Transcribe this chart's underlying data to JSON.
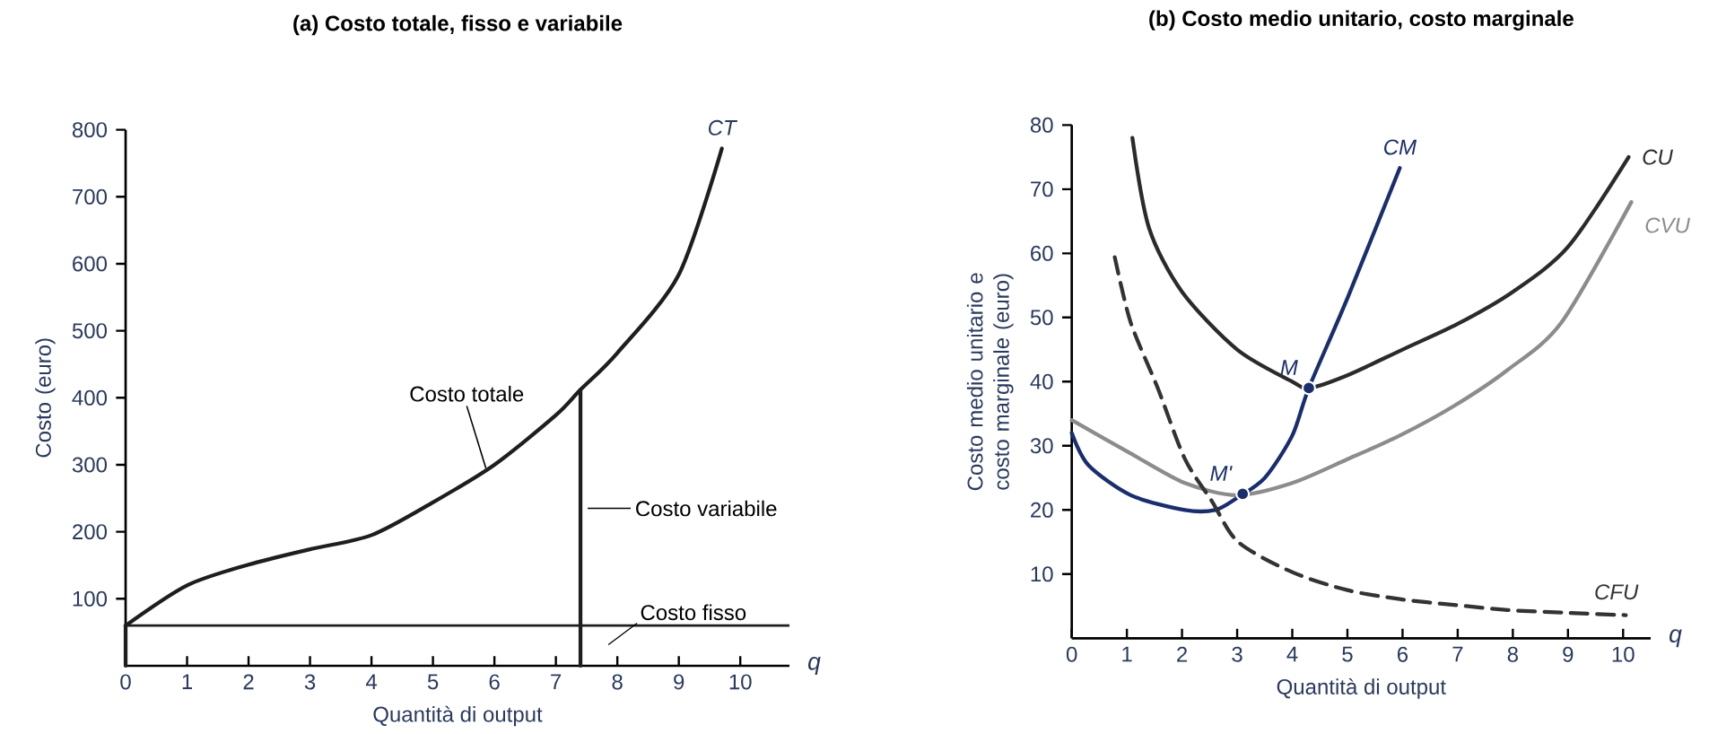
{
  "chart_data": [
    {
      "type": "line",
      "title": "(a) Costo totale, fisso e variabile",
      "xlabel": "Quantità di output",
      "ylabel": "Costo (euro)",
      "xlim": [
        0,
        10.8
      ],
      "ylim": [
        0,
        800
      ],
      "xticks": [
        0,
        1,
        2,
        3,
        4,
        5,
        6,
        7,
        8,
        9,
        10
      ],
      "yticks": [
        100,
        200,
        300,
        400,
        500,
        600,
        700,
        800
      ],
      "series": [
        {
          "name": "CT",
          "color": "#1e1e1e",
          "x": [
            0,
            1,
            2,
            3,
            4,
            5,
            6,
            7,
            7.4,
            8,
            9,
            9.7
          ],
          "values": [
            60,
            120,
            151,
            174,
            195,
            244,
            300,
            374,
            412,
            467,
            584,
            772
          ]
        },
        {
          "color": "#1e1e1e",
          "x": [
            7.4,
            7.4
          ],
          "values": [
            60,
            412
          ]
        },
        {
          "color": "#1e1e1e",
          "x": [
            0,
            0
          ],
          "values": [
            0,
            60
          ]
        },
        {
          "color": "#1e1e1e",
          "x": [
            7.4,
            7.4
          ],
          "values": [
            0,
            60
          ]
        }
      ],
      "ref_lines": [
        {
          "axis": "y",
          "value": 60,
          "label": "Costo fisso",
          "color": "#1e1e1e"
        }
      ],
      "annotations": [
        {
          "text": "Costo totale",
          "x": 5.9,
          "y": 295
        },
        {
          "text": "Costo variabile",
          "x": 7.4,
          "y": 235
        },
        "q"
      ]
    },
    {
      "type": "line",
      "title": "(b) Costo medio unitario, costo marginale",
      "xlabel": "Quantità di output",
      "ylabel": "Costo medio unitario e costo marginale (euro)",
      "xlim": [
        0,
        10.5
      ],
      "ylim": [
        0,
        80
      ],
      "xticks": [
        0,
        1,
        2,
        3,
        4,
        5,
        6,
        7,
        8,
        9,
        10
      ],
      "yticks": [
        10,
        20,
        30,
        40,
        50,
        60,
        70,
        80
      ],
      "series": [
        {
          "name": "CU",
          "color": "#2b2b2b",
          "x": [
            1.1,
            1.4,
            2,
            3,
            4,
            4.3,
            5,
            6,
            7,
            8,
            9,
            10.1
          ],
          "values": [
            78,
            64,
            54,
            45,
            40,
            39,
            41,
            45,
            49,
            54,
            61,
            75
          ]
        },
        {
          "name": "CVU",
          "color": "#8c8c8c",
          "x": [
            0,
            1.07,
            2.05,
            3,
            4,
            5,
            5.95,
            6.93,
            7.9,
            8.88,
            10.15
          ],
          "values": [
            34,
            28.8,
            24.2,
            22.3,
            24.2,
            27.9,
            31.6,
            36.2,
            41.8,
            49.2,
            68
          ]
        },
        {
          "name": "CM",
          "color": "#1a2e6e",
          "x": [
            0,
            0.3,
            1.07,
            2.05,
            2.6,
            3,
            3.5,
            4,
            4.3,
            5,
            5.95
          ],
          "values": [
            32,
            27,
            22.3,
            20,
            20,
            21.9,
            25,
            31.6,
            39,
            53,
            73.3
          ]
        },
        {
          "name": "CFU",
          "color": "#333333",
          "line_style": "dashed",
          "x": [
            0.78,
            1.07,
            1.56,
            2.05,
            2.54,
            3.02,
            4,
            5,
            5.95,
            6.93,
            7.9,
            8.88,
            10.05
          ],
          "values": [
            59.4,
            49.2,
            39,
            28,
            21.4,
            15,
            10.3,
            7.5,
            6.1,
            5.2,
            4.4,
            4,
            3.6
          ]
        },
        {
          "name": "M'",
          "type": "scatter",
          "marker": "circle",
          "color": "#1a2e6e",
          "x": [
            3.1
          ],
          "values": [
            22.5
          ]
        },
        {
          "name": "M",
          "type": "scatter",
          "marker": "circle",
          "color": "#1a2e6e",
          "x": [
            4.3
          ],
          "values": [
            39
          ]
        }
      ],
      "annotations": [
        "q"
      ]
    }
  ]
}
